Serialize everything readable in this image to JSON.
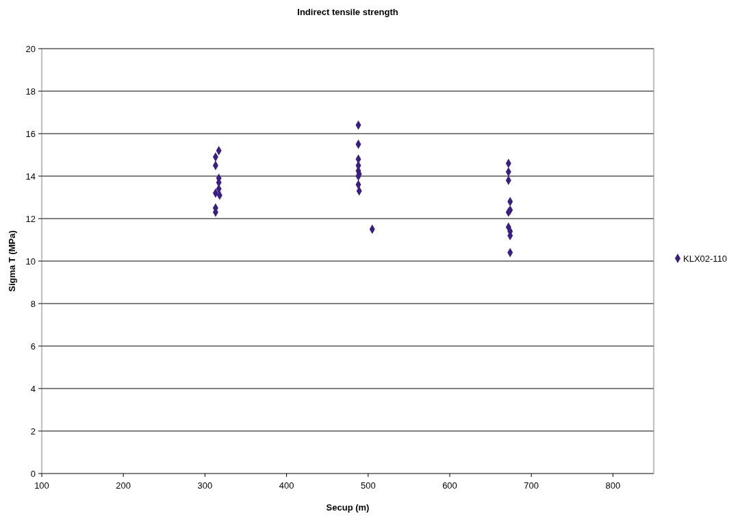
{
  "chart_data": {
    "type": "scatter",
    "title": "Indirect tensile strength",
    "xlabel": "Secup (m)",
    "ylabel": "Sigma T (MPa)",
    "xlim": [
      100,
      850
    ],
    "xticks": [
      100,
      200,
      300,
      400,
      500,
      600,
      700,
      800
    ],
    "ylim": [
      0,
      20
    ],
    "yticks": [
      0,
      2,
      4,
      6,
      8,
      10,
      12,
      14,
      16,
      18,
      20
    ],
    "grid": "y",
    "legend": "right",
    "marker": "diamond",
    "series": [
      {
        "name": "KLX02-110",
        "color": "#3a1f80",
        "x": [
          317,
          313,
          313,
          317,
          317,
          317,
          313,
          318,
          313,
          313,
          488,
          488,
          488,
          488,
          488,
          489,
          488,
          488,
          489,
          505,
          672,
          672,
          672,
          674,
          674,
          672,
          672,
          674,
          674,
          674
        ],
        "values": [
          15.2,
          14.9,
          14.5,
          13.9,
          13.7,
          13.4,
          13.2,
          13.1,
          12.5,
          12.3,
          16.4,
          15.5,
          14.8,
          14.5,
          14.25,
          14.1,
          14.0,
          13.6,
          13.3,
          11.5,
          14.6,
          14.2,
          13.8,
          12.8,
          12.4,
          12.3,
          11.6,
          11.4,
          11.2,
          10.4
        ]
      }
    ]
  }
}
